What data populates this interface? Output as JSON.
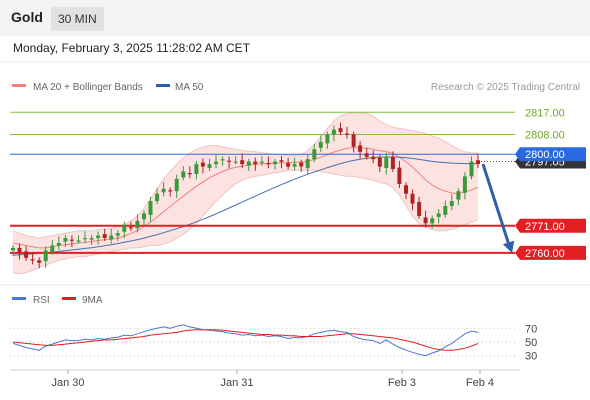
{
  "header": {
    "symbol": "Gold",
    "timeframe": "30 MIN"
  },
  "datetime": "Monday, February 3, 2025 11:28:02 AM CET",
  "legend": {
    "bollinger_label": "MA 20 + Bollinger Bands",
    "ma50_label": "MA 50",
    "research": "Research © 2025 Trading Central",
    "rsi_label": "RSI",
    "rsi_ma_label": "9MA"
  },
  "colors": {
    "resistance": "#7cc242",
    "pivot": "#2a6ae0",
    "support": "#e31e24",
    "arrow": "#2f5fa8",
    "candle_up": "#3a9a3a",
    "candle_down": "#b02222",
    "band_fill": "#fde2e2",
    "ma20": "#f08080",
    "ma50": "#4a6fa8",
    "rsi": "#4a78d0",
    "rsi_ma": "#e02020",
    "last_price_bg": "#333333"
  },
  "chart_data": {
    "type": "candlestick",
    "x_ticks": [
      "Jan 30",
      "Jan 31",
      "Feb 3",
      "Feb 4"
    ],
    "price_levels": [
      {
        "value": 2817.0,
        "label": "2817.00",
        "kind": "resistance"
      },
      {
        "value": 2808.0,
        "label": "2808.00",
        "kind": "resistance"
      },
      {
        "value": 2800.0,
        "label": "2800.00",
        "kind": "pivot"
      },
      {
        "value": 2771.0,
        "label": "2771.00",
        "kind": "support"
      },
      {
        "value": 2760.0,
        "label": "2760.00",
        "kind": "support"
      }
    ],
    "last_price": {
      "value": 2797.05,
      "label": "2797.05"
    },
    "y_range": [
      2749,
      2822
    ],
    "forecast": {
      "from": 2796,
      "to": 2760,
      "direction": "down"
    },
    "candles_close": [
      2762,
      2760,
      2758,
      2757,
      2756,
      2761,
      2763,
      2764,
      2766,
      2765,
      2765,
      2766,
      2766,
      2767,
      2766,
      2767,
      2768,
      2771,
      2770,
      2773,
      2776,
      2781,
      2784,
      2786,
      2785,
      2790,
      2793,
      2792,
      2796,
      2795,
      2796,
      2797,
      2798,
      2797,
      2797,
      2796,
      2797,
      2796,
      2797,
      2796,
      2797,
      2797,
      2795,
      2796,
      2795,
      2798,
      2802,
      2805,
      2808,
      2810,
      2809,
      2808,
      2803,
      2801,
      2799,
      2798,
      2795,
      2799,
      2794,
      2788,
      2784,
      2780,
      2775,
      2772,
      2774,
      2776,
      2779,
      2781,
      2785,
      2791,
      2797,
      2796
    ],
    "bollinger_mid": [
      2764,
      2763.5,
      2763,
      2762.5,
      2762,
      2762,
      2762.5,
      2763,
      2763.3,
      2763.6,
      2764,
      2764.3,
      2764.6,
      2765,
      2765.3,
      2765.6,
      2766,
      2766.8,
      2767.8,
      2769,
      2770.7,
      2772.5,
      2774.5,
      2776.7,
      2778.8,
      2781,
      2783,
      2785,
      2787,
      2788.8,
      2790.5,
      2791.8,
      2793,
      2794,
      2794.7,
      2795.2,
      2795.6,
      2795.9,
      2796.1,
      2796.3,
      2796.4,
      2796.5,
      2796.6,
      2796.7,
      2796.8,
      2797.2,
      2797.9,
      2798.8,
      2799.8,
      2800.9,
      2801.7,
      2802.4,
      2802.6,
      2802.6,
      2802.4,
      2802.1,
      2801.4,
      2801.1,
      2800.3,
      2798.8,
      2796.9,
      2794.8,
      2792.3,
      2789.6,
      2787.5,
      2786,
      2785,
      2784.3,
      2784,
      2784.6,
      2785.6,
      2786.6
    ],
    "bollinger_upper": [
      2769,
      2768,
      2767,
      2766.5,
      2766,
      2766.5,
      2767,
      2767.5,
      2768,
      2768.5,
      2769,
      2769,
      2769,
      2769.5,
      2769.5,
      2770,
      2770.5,
      2771.5,
      2773,
      2775,
      2778,
      2782,
      2786,
      2790,
      2793,
      2796,
      2798.5,
      2800.5,
      2802,
      2803,
      2803.5,
      2803.5,
      2803,
      2802.5,
      2802,
      2801.5,
      2801.2,
      2801,
      2800.6,
      2800.3,
      2800,
      2799.8,
      2799.5,
      2799.5,
      2799.8,
      2801.5,
      2804,
      2807,
      2810.5,
      2813.5,
      2815.5,
      2816.5,
      2816.8,
      2816.8,
      2816.5,
      2815.5,
      2813.5,
      2812,
      2811,
      2810.5,
      2810,
      2809.5,
      2809,
      2808.5,
      2807.5,
      2806.5,
      2805,
      2803.5,
      2802,
      2801,
      2800.5,
      2800.5
    ],
    "bollinger_lower": [
      2752,
      2751.5,
      2752,
      2753,
      2754,
      2755,
      2756,
      2757,
      2757.5,
      2758,
      2758.5,
      2758.5,
      2759,
      2759.5,
      2760,
      2760.5,
      2761,
      2761.5,
      2762,
      2762,
      2762.5,
      2763,
      2763,
      2763.5,
      2764.5,
      2766,
      2767.5,
      2769.5,
      2772,
      2775,
      2778,
      2781,
      2783.5,
      2786,
      2788,
      2789.5,
      2790.5,
      2791,
      2791.5,
      2792,
      2792.5,
      2793,
      2793.5,
      2793.5,
      2793.5,
      2793.5,
      2793.5,
      2793,
      2792.5,
      2792,
      2791.5,
      2791,
      2791,
      2790.5,
      2790,
      2789.5,
      2788.5,
      2788,
      2786.5,
      2783.5,
      2779,
      2775,
      2772,
      2770.5,
      2769.5,
      2769,
      2769,
      2769.5,
      2770.5,
      2771.5,
      2772.5,
      2773.5
    ],
    "ma50": [
      2759,
      2759.2,
      2759.4,
      2759.6,
      2759.8,
      2760,
      2760.3,
      2760.6,
      2760.9,
      2761.2,
      2761.5,
      2761.8,
      2762.1,
      2762.5,
      2762.9,
      2763.3,
      2763.8,
      2764.3,
      2764.8,
      2765.4,
      2766,
      2766.7,
      2767.4,
      2768.2,
      2769,
      2769.8,
      2770.7,
      2771.6,
      2772.6,
      2773.6,
      2774.7,
      2775.8,
      2777,
      2778.2,
      2779.4,
      2780.6,
      2781.8,
      2783,
      2784.2,
      2785.4,
      2786.6,
      2787.7,
      2788.8,
      2789.9,
      2790.9,
      2791.9,
      2792.8,
      2793.7,
      2794.6,
      2795.4,
      2796.2,
      2796.9,
      2797.5,
      2798,
      2798.4,
      2798.7,
      2798.8,
      2798.9,
      2798.9,
      2798.8,
      2798.6,
      2798.3,
      2797.9,
      2797.5,
      2797.1,
      2796.8,
      2796.6,
      2796.4,
      2796.3,
      2796.2,
      2796.2,
      2796.2
    ],
    "rsi": {
      "levels": [
        70,
        50,
        30
      ],
      "range": [
        15,
        85
      ],
      "values": [
        48,
        45,
        42,
        40,
        38,
        44,
        47,
        50,
        53,
        52,
        52,
        54,
        53,
        55,
        54,
        56,
        57,
        60,
        59,
        62,
        65,
        68,
        70,
        72,
        70,
        73,
        75,
        72,
        70,
        68,
        67,
        66,
        65,
        63,
        62,
        60,
        61,
        59,
        60,
        58,
        59,
        58,
        55,
        57,
        56,
        58,
        62,
        64,
        66,
        67,
        65,
        64,
        58,
        55,
        53,
        52,
        48,
        53,
        47,
        42,
        38,
        35,
        32,
        30,
        34,
        37,
        43,
        48,
        55,
        62,
        66,
        64
      ],
      "ma_values": [
        50,
        49,
        48,
        47,
        46,
        45,
        45,
        46,
        47,
        48,
        49,
        50,
        51,
        52,
        53,
        53,
        54,
        55,
        56,
        57,
        58,
        60,
        61,
        62,
        63,
        64,
        66,
        67,
        68,
        68,
        68,
        68,
        67,
        66,
        65,
        64,
        63,
        62,
        61,
        61,
        60,
        60,
        59,
        59,
        58,
        58,
        58,
        58,
        59,
        60,
        61,
        62,
        62,
        61,
        60,
        59,
        58,
        57,
        56,
        54,
        52,
        50,
        47,
        44,
        41,
        39,
        38,
        38,
        39,
        41,
        44,
        48
      ]
    }
  }
}
